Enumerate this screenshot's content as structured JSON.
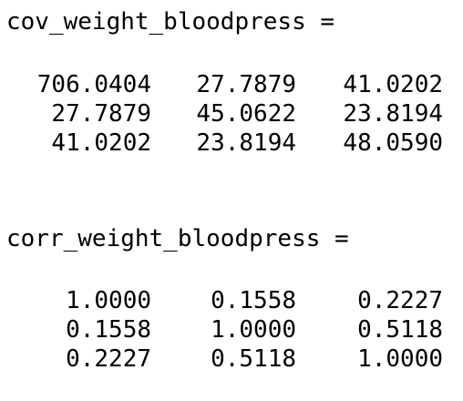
{
  "console": {
    "blocks": [
      {
        "label": "cov_weight_bloodpress =",
        "rows": [
          [
            "706.0404",
            "27.7879",
            "41.0202"
          ],
          [
            "27.7879",
            "45.0622",
            "23.8194"
          ],
          [
            "41.0202",
            "23.8194",
            "48.0590"
          ]
        ]
      },
      {
        "label": "corr_weight_bloodpress =",
        "rows": [
          [
            "1.0000",
            "0.1558",
            "0.2227"
          ],
          [
            "0.1558",
            "1.0000",
            "0.5118"
          ],
          [
            "0.2227",
            "0.5118",
            "1.0000"
          ]
        ]
      }
    ]
  }
}
